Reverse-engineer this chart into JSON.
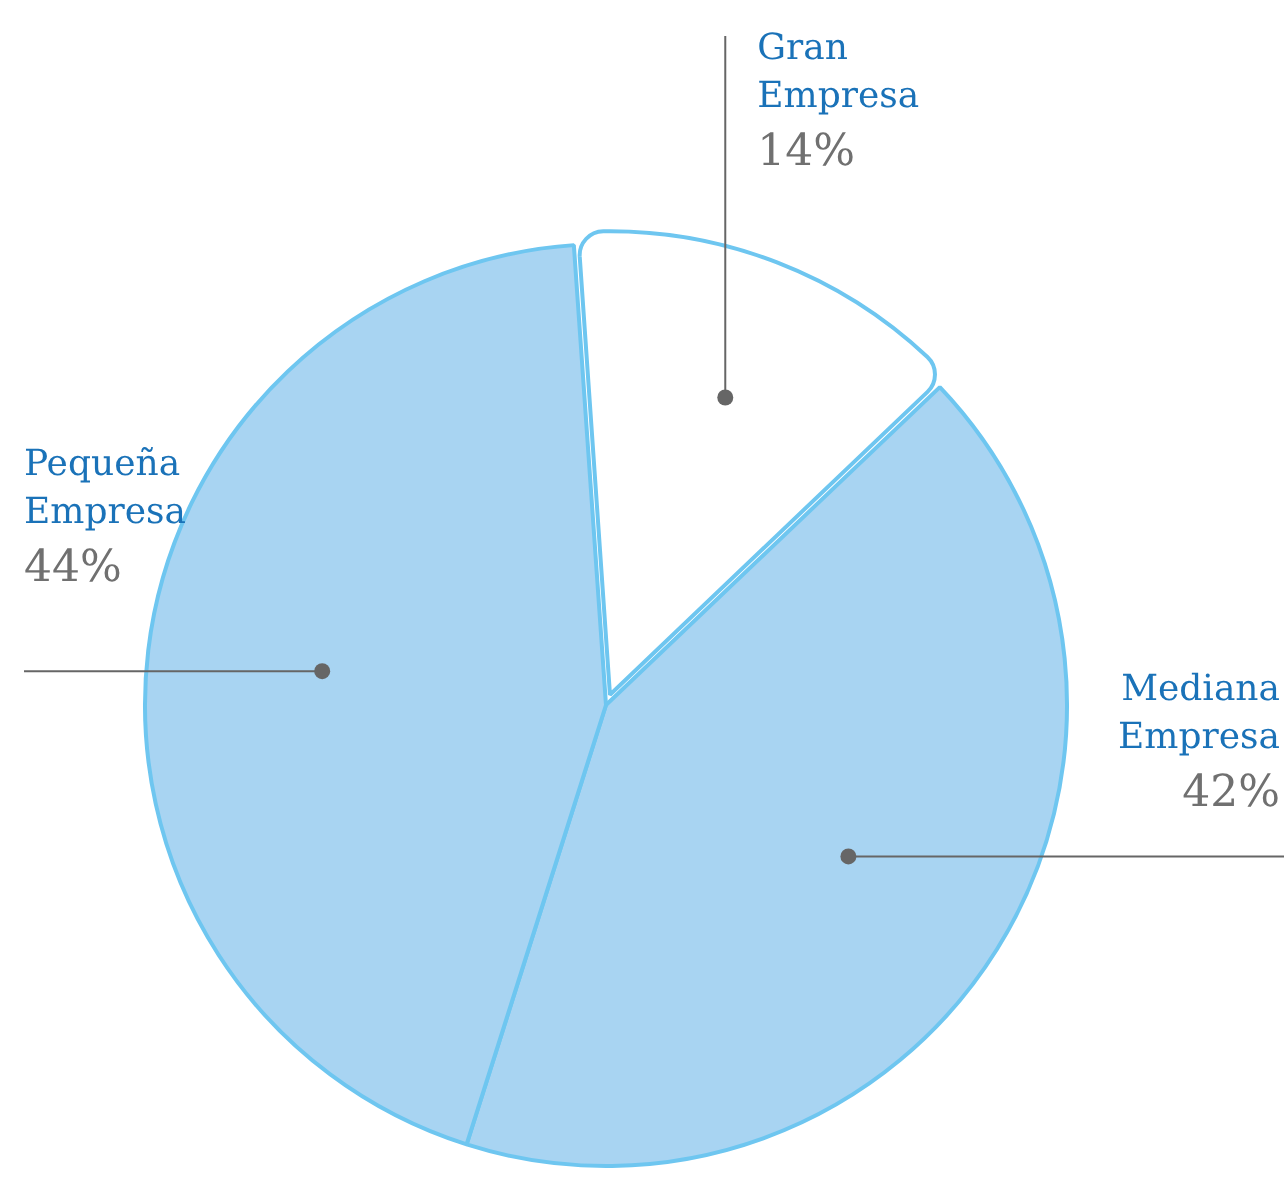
{
  "chart_data": {
    "type": "pie",
    "categories": [
      "Gran Empresa",
      "Mediana Empresa",
      "Pequeña Empresa"
    ],
    "values": [
      14,
      42,
      44
    ],
    "colors": [
      "#ffffff",
      "#a8d4f2",
      "#a8d4f2"
    ],
    "value_labels": [
      "14%",
      "42%",
      "44%"
    ],
    "legend": false
  }
}
